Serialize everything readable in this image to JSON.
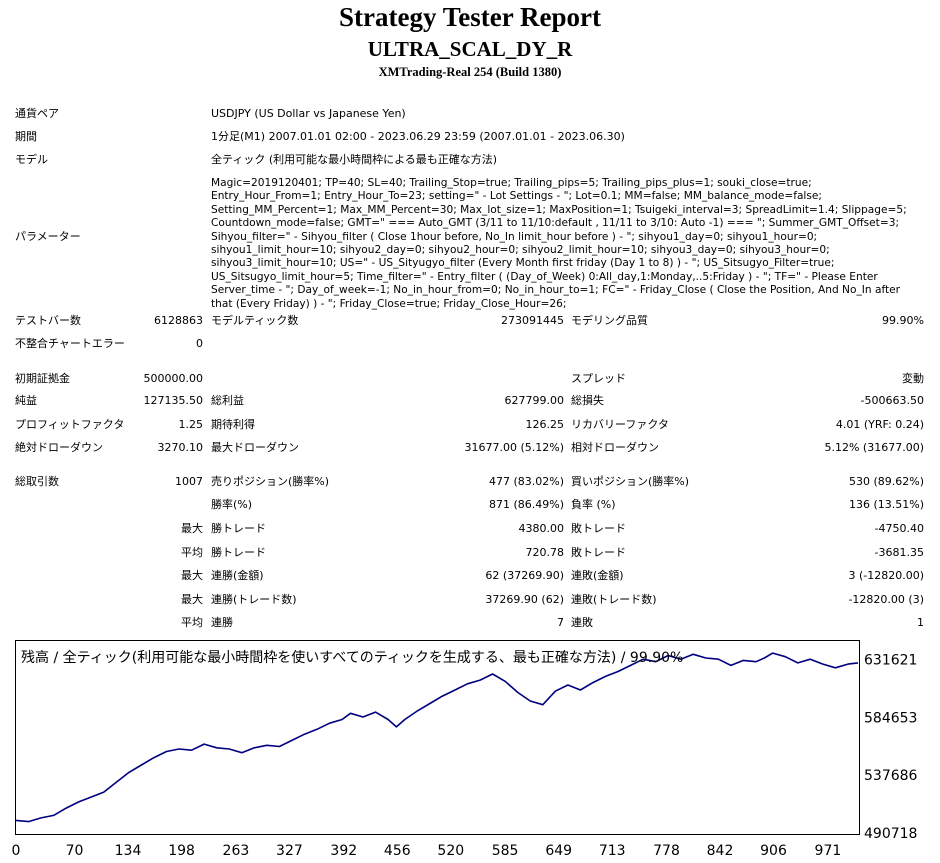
{
  "header": {
    "title": "Strategy Tester Report",
    "expert": "ULTRA_SCAL_DY_R",
    "server": "XMTrading-Real 254 (Build 1380)"
  },
  "info": {
    "symbol_label": "通貨ペア",
    "symbol_value": "USDJPY (US Dollar vs Japanese Yen)",
    "period_label": "期間",
    "period_value": "1分足(M1) 2007.01.01 02:00 - 2023.06.29 23:59 (2007.01.01 - 2023.06.30)",
    "model_label": "モデル",
    "model_value": "全ティック (利用可能な最小時間枠による最も正確な方法)",
    "params_label": "パラメーター",
    "params_value": "Magic=2019120401; TP=40; SL=40; Trailing_Stop=true; Trailing_pips=5; Trailing_pips_plus=1; souki_close=true; Entry_Hour_From=1; Entry_Hour_To=23; setting=\" - Lot Settings - \"; Lot=0.1; MM=false; MM_balance_mode=false; Setting_MM_Percent=1; Max_MM_Percent=30; Max_lot_size=1; MaxPosition=1; Tsuigeki_interval=3; SpreadLimit=1.4; Slippage=5; Countdown_mode=false; GMT=\" === Auto_GMT (3/11 to 11/10:default , 11/11 to 3/10: Auto -1) === \"; Summer_GMT_Offset=3; Sihyou_filter=\" - Sihyou_filter ( Close 1hour before, No_In limit_hour before ) - \"; sihyou1_day=0; sihyou1_hour=0; sihyou1_limit_hour=10; sihyou2_day=0; sihyou2_hour=0; sihyou2_limit_hour=10; sihyou3_day=0; sihyou3_hour=0; sihyou3_limit_hour=10; US=\" - US_Sityugyo_filter (Every Month first friday (Day 1 to 8) ) - \"; US_Sitsugyo_Filter=true; US_Sitsugyo_limit_hour=5; Time_filter=\" - Entry_filter ( (Day_of_Week) 0:All_day,1:Monday,..5:Friday ) - \"; TF=\" - Please Enter Server_time - \"; Day_of_week=-1; No_in_hour_from=0; No_in_hour_to=1; FC=\" - Friday_Close ( Close the Position, And No_In after that (Every Friday) ) - \"; Friday_Close=true; Friday_Close_Hour=26;"
  },
  "stats": {
    "bars_label": "テストバー数",
    "bars_value": "6128863",
    "ticks_label": "モデルティック数",
    "ticks_value": "273091445",
    "quality_label": "モデリング品質",
    "quality_value": "99.90%",
    "mismatch_label": "不整合チャートエラー",
    "mismatch_value": "0",
    "deposit_label": "初期証拠金",
    "deposit_value": "500000.00",
    "spread_label": "スプレッド",
    "spread_value": "変動",
    "net_label": "純益",
    "net_value": "127135.50",
    "gross_profit_label": "総利益",
    "gross_profit_value": "627799.00",
    "gross_loss_label": "総損失",
    "gross_loss_value": "-500663.50",
    "pf_label": "プロフィットファクタ",
    "pf_value": "1.25",
    "payoff_label": "期待利得",
    "payoff_value": "126.25",
    "recovery_label": "リカバリーファクタ",
    "recovery_value": "4.01 (YRF: 0.24)",
    "abs_dd_label": "絶対ドローダウン",
    "abs_dd_value": "3270.10",
    "max_dd_label": "最大ドローダウン",
    "max_dd_value": "31677.00 (5.12%)",
    "rel_dd_label": "相対ドローダウン",
    "rel_dd_value": "5.12% (31677.00)",
    "trades_label": "総取引数",
    "trades_value": "1007",
    "short_label": "売りポジション(勝率%)",
    "short_value": "477 (83.02%)",
    "long_label": "買いポジション(勝率%)",
    "long_value": "530 (89.62%)",
    "win_rate_label": "勝率(%)",
    "win_rate_value": "871 (86.49%)",
    "loss_rate_label": "負率 (%)",
    "loss_rate_value": "136 (13.51%)",
    "max_word": "最大",
    "avg_word": "平均",
    "largest_win_label": "勝トレード",
    "largest_win_value": "4380.00",
    "largest_loss_label": "敗トレード",
    "largest_loss_value": "-4750.40",
    "avg_win_label": "勝トレード",
    "avg_win_value": "720.78",
    "avg_loss_label": "敗トレード",
    "avg_loss_value": "-3681.35",
    "cons_wins_money_label": "連勝(金額)",
    "cons_wins_money_value": "62 (37269.90)",
    "cons_losses_money_label": "連敗(金額)",
    "cons_losses_money_value": "3 (-12820.00)",
    "cons_wins_count_label": "連勝(トレード数)",
    "cons_wins_count_value": "37269.90 (62)",
    "cons_losses_count_label": "連敗(トレード数)",
    "cons_losses_count_value": "-12820.00 (3)",
    "avg_cons_wins_label": "連勝",
    "avg_cons_wins_value": "7",
    "avg_cons_losses_label": "連敗",
    "avg_cons_losses_value": "1"
  },
  "chart_data": {
    "type": "line",
    "title": "残高 / 全ティック(利用可能な最小時間枠を使いすべてのティックを生成する、最も正確な方法) / 99.90%",
    "x_ticks": [
      "0",
      "70",
      "134",
      "198",
      "263",
      "327",
      "392",
      "456",
      "520",
      "585",
      "649",
      "713",
      "778",
      "842",
      "906",
      "971"
    ],
    "x_tick_values": [
      0,
      70,
      134,
      198,
      263,
      327,
      392,
      456,
      520,
      585,
      649,
      713,
      778,
      842,
      906,
      971
    ],
    "y_ticks": [
      "631621",
      "584653",
      "537686",
      "490718"
    ],
    "y_tick_values": [
      631621,
      584653,
      537686,
      490718
    ],
    "xlim": [
      0,
      1007
    ],
    "ylim": [
      490718,
      646800
    ],
    "line_color": "#000080",
    "series": [
      {
        "x": [
          0,
          15,
          30,
          45,
          60,
          75,
          90,
          105,
          120,
          135,
          150,
          165,
          180,
          195,
          210,
          225,
          240,
          255,
          270,
          285,
          300,
          315,
          330,
          345,
          360,
          375,
          390,
          400,
          415,
          430,
          445,
          455,
          465,
          480,
          495,
          510,
          525,
          540,
          555,
          570,
          585,
          600,
          615,
          630,
          645,
          660,
          675,
          690,
          705,
          720,
          735,
          750,
          765,
          780,
          795,
          810,
          825,
          840,
          855,
          870,
          885,
          895,
          905,
          920,
          935,
          950,
          965,
          980,
          995,
          1007
        ],
        "y": [
          501000,
          500000,
          503000,
          505000,
          511000,
          516000,
          520000,
          524000,
          532000,
          540000,
          546000,
          552000,
          557000,
          559000,
          558000,
          563000,
          560000,
          559000,
          556000,
          560000,
          562000,
          561000,
          566000,
          571000,
          575000,
          580000,
          583000,
          588000,
          585000,
          589000,
          583000,
          577000,
          583000,
          590000,
          596000,
          602000,
          607000,
          612000,
          615000,
          620000,
          614000,
          605000,
          598000,
          595000,
          606000,
          611000,
          607000,
          613000,
          618000,
          622000,
          627000,
          632000,
          630000,
          635000,
          632000,
          636000,
          633000,
          632000,
          627000,
          631000,
          630000,
          633000,
          637000,
          634000,
          629000,
          632000,
          628000,
          625000,
          628000,
          629000
        ]
      }
    ]
  }
}
